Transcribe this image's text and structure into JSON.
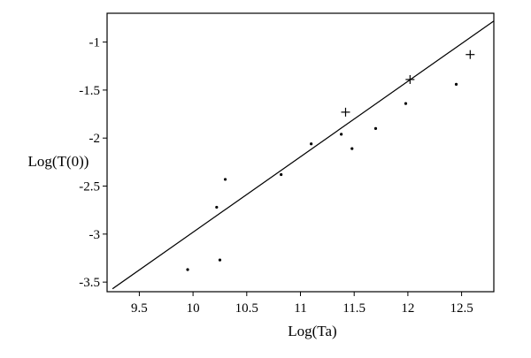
{
  "chart_data": {
    "type": "scatter",
    "title": "",
    "xlabel": "Log(Ta)",
    "ylabel": "Log(T(0))",
    "xlim": [
      9.2,
      12.8
    ],
    "ylim": [
      -3.6,
      -0.7
    ],
    "x_ticks": [
      {
        "value": 9.5,
        "label": "9.5"
      },
      {
        "value": 10,
        "label": "10"
      },
      {
        "value": 10.5,
        "label": "10.5"
      },
      {
        "value": 11,
        "label": "11"
      },
      {
        "value": 11.5,
        "label": "11.5"
      },
      {
        "value": 12,
        "label": "12"
      },
      {
        "value": 12.5,
        "label": "12.5"
      }
    ],
    "y_ticks": [
      {
        "value": -1,
        "label": "-1"
      },
      {
        "value": -1.5,
        "label": "-1.5"
      },
      {
        "value": -2,
        "label": "-2"
      },
      {
        "value": -2.5,
        "label": "-2.5"
      },
      {
        "value": -3,
        "label": "-3"
      },
      {
        "value": -3.5,
        "label": "-3.5"
      }
    ],
    "grid": false,
    "legend": "none",
    "series": [
      {
        "marker": "dot",
        "x": [
          9.95,
          10.22,
          10.25,
          10.3,
          10.82,
          11.1,
          11.38,
          11.48,
          11.7,
          11.98,
          12.45
        ],
        "y": [
          -3.37,
          -2.72,
          -3.27,
          -2.43,
          -2.38,
          -2.06,
          -1.96,
          -2.11,
          -1.9,
          -1.64,
          -1.44
        ]
      },
      {
        "marker": "plus",
        "x": [
          11.42,
          12.02,
          12.58
        ],
        "y": [
          -1.73,
          -1.39,
          -1.13
        ]
      },
      {
        "marker": "line",
        "x": [
          9.25,
          12.8
        ],
        "y": [
          -3.57,
          -0.78
        ]
      }
    ],
    "colors": {
      "ink": "#000000",
      "background": "#ffffff"
    }
  }
}
